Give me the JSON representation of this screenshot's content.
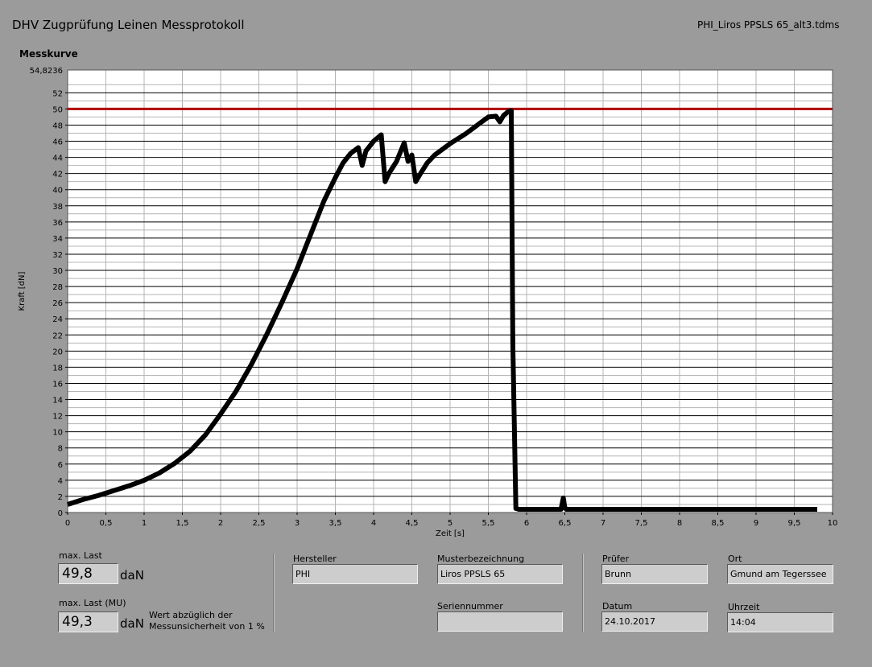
{
  "header": {
    "title": "DHV Zugprüfung Leinen Messprotokoll",
    "filename": "PHI_Liros PPSLS 65_alt3.tdms",
    "chart_heading": "Messkurve"
  },
  "chart_data": {
    "type": "line",
    "xlabel": "Zeit [s]",
    "ylabel": "Kraft [dN]",
    "xlim": [
      0,
      10
    ],
    "ylim": [
      0,
      54.8236
    ],
    "ymax_label": "54,8236",
    "x_ticks": [
      "0",
      "0,5",
      "1",
      "1,5",
      "2",
      "2,5",
      "3",
      "3,5",
      "4",
      "4,5",
      "5",
      "5,5",
      "6",
      "6,5",
      "7",
      "7,5",
      "8",
      "8,5",
      "9",
      "9,5",
      "10"
    ],
    "y_ticks": [
      "0",
      "2",
      "4",
      "6",
      "8",
      "10",
      "12",
      "14",
      "16",
      "18",
      "20",
      "22",
      "24",
      "26",
      "28",
      "30",
      "32",
      "34",
      "36",
      "38",
      "40",
      "42",
      "44",
      "46",
      "48",
      "50",
      "52"
    ],
    "grid": true,
    "colors": {
      "background": "#ffffff",
      "curve": "#000000",
      "limit_line": "#b00000",
      "grid_major": "#000000",
      "grid_minor": "#b4b4b4"
    },
    "series": [
      {
        "x": [
          0,
          0.2,
          0.4,
          0.6,
          0.8,
          1.0,
          1.2,
          1.4,
          1.6,
          1.8,
          2.0,
          2.2,
          2.4,
          2.6,
          2.8,
          3.0,
          3.2,
          3.35,
          3.5,
          3.6,
          3.7,
          3.8,
          3.85,
          3.9,
          4.0,
          4.1,
          4.15,
          4.2,
          4.3,
          4.4,
          4.45,
          4.5,
          4.55,
          4.6,
          4.7,
          4.8,
          4.9,
          5.0,
          5.1,
          5.2,
          5.3,
          5.4,
          5.5,
          5.6,
          5.65,
          5.7,
          5.75,
          5.8,
          5.82,
          5.86,
          5.9,
          6.0,
          6.45,
          6.48,
          6.5,
          6.52,
          6.6,
          7.0,
          8.0,
          9.0,
          9.8
        ],
        "y": [
          1.0,
          1.6,
          2.1,
          2.7,
          3.3,
          4.0,
          4.9,
          6.1,
          7.6,
          9.6,
          12.2,
          15.0,
          18.3,
          22.0,
          26.0,
          30.2,
          35.0,
          38.6,
          41.5,
          43.3,
          44.5,
          45.2,
          43.0,
          44.8,
          46.0,
          46.8,
          41.0,
          42.0,
          43.5,
          45.8,
          43.5,
          44.3,
          41.0,
          41.8,
          43.3,
          44.3,
          45.0,
          45.7,
          46.3,
          46.9,
          47.6,
          48.3,
          49.0,
          49.1,
          48.4,
          49.2,
          49.6,
          49.8,
          21.0,
          0.5,
          0.4,
          0.4,
          0.4,
          1.8,
          0.6,
          0.4,
          0.4,
          0.4,
          0.4,
          0.4,
          0.4
        ]
      }
    ],
    "limit_line": 50
  },
  "fields": {
    "max_last": {
      "label": "max. Last",
      "value": "49,8",
      "unit": "daN"
    },
    "max_last_mu": {
      "label": "max. Last (MU)",
      "value": "49,3",
      "unit": "daN",
      "note_line1": "Wert abzüglich der",
      "note_line2": "Messunsicherheit von 1 %"
    },
    "hersteller": {
      "label": "Hersteller",
      "value": "PHI"
    },
    "musterbezeichnung": {
      "label": "Musterbezeichnung",
      "value": "Liros PPSLS 65"
    },
    "seriennummer": {
      "label": "Seriennummer",
      "value": ""
    },
    "pruefer": {
      "label": "Prüfer",
      "value": "Brunn"
    },
    "ort": {
      "label": "Ort",
      "value": "Gmund am Tegerssee"
    },
    "datum": {
      "label": "Datum",
      "value": "24.10.2017"
    },
    "uhrzeit": {
      "label": "Uhrzeit",
      "value": "14:04"
    }
  }
}
